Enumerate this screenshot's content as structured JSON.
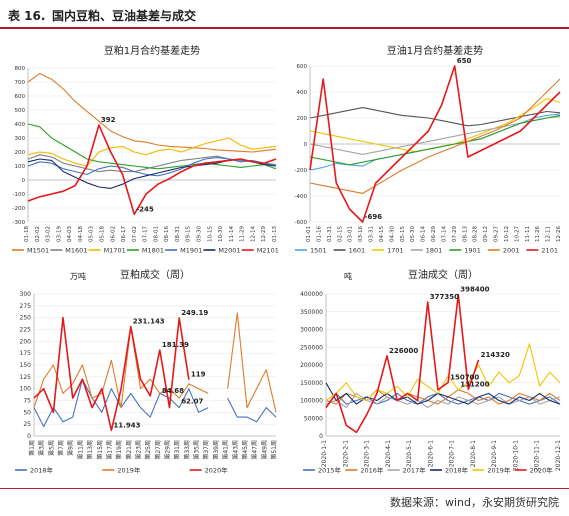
{
  "header": {
    "table_number": "表 16.",
    "title": "国内豆粕、豆油基差与成交"
  },
  "source": "数据来源：wind，永安期货研究院",
  "chart_data": [
    {
      "id": "meal-basis",
      "type": "line",
      "title": "豆粕1月合约基差走势",
      "ylim": [
        -300,
        800
      ],
      "yticks": [
        -300,
        -200,
        -100,
        0,
        100,
        200,
        300,
        400,
        500,
        600,
        700,
        800
      ],
      "x": [
        "01-01",
        "01-19",
        "02-06",
        "02-24",
        "03-12",
        "03-30",
        "04-17",
        "05-05",
        "05-23",
        "06-10",
        "06-28",
        "07-16",
        "08-03",
        "08-21",
        "09-08",
        "09-26",
        "10-14",
        "11-01",
        "11-19",
        "12-07",
        "12-25",
        "01-12"
      ],
      "x_ticks_shown": [
        "01-18",
        "02-02",
        "03-02",
        "03-19",
        "04-03",
        "04-18",
        "05-03",
        "05-18",
        "06-02",
        "06-17",
        "07-02",
        "07-17",
        "08-01",
        "08-16",
        "08-31",
        "09-15",
        "09-30",
        "10-15",
        "10-30",
        "11-14",
        "11-29",
        "12-14",
        "12-29",
        "01-13"
      ],
      "annotations": [
        {
          "text": "392",
          "series": 6,
          "x": "04-17",
          "y": 392
        },
        {
          "text": "-245",
          "series": 6,
          "x": "06-10",
          "y": -245
        }
      ],
      "legend_position": "bottom",
      "series": [
        {
          "name": "M1501",
          "color": "#e07b2a",
          "values": [
            700,
            760,
            720,
            650,
            560,
            490,
            420,
            350,
            310,
            280,
            270,
            250,
            240,
            235,
            230,
            225,
            215,
            210,
            205,
            200,
            210,
            220
          ]
        },
        {
          "name": "M1601",
          "color": "#808080",
          "values": [
            150,
            180,
            165,
            120,
            100,
            80,
            60,
            70,
            60,
            60,
            80,
            100,
            120,
            140,
            150,
            160,
            170,
            150,
            140,
            130,
            120,
            110
          ]
        },
        {
          "name": "M1701",
          "color": "#f5b800",
          "values": [
            180,
            200,
            190,
            150,
            120,
            100,
            200,
            230,
            240,
            200,
            180,
            210,
            220,
            200,
            230,
            260,
            280,
            300,
            250,
            220,
            230,
            240
          ]
        },
        {
          "name": "M1801",
          "color": "#2ca02c",
          "values": [
            400,
            380,
            300,
            250,
            200,
            150,
            130,
            120,
            110,
            100,
            90,
            80,
            90,
            100,
            110,
            120,
            110,
            100,
            90,
            100,
            110,
            80
          ]
        },
        {
          "name": "M1901",
          "color": "#4472c4",
          "values": [
            100,
            130,
            120,
            80,
            60,
            40,
            80,
            100,
            90,
            60,
            40,
            30,
            50,
            80,
            120,
            150,
            160,
            150,
            130,
            140,
            120,
            100
          ]
        },
        {
          "name": "M2001",
          "color": "#1a2a6c",
          "values": [
            130,
            150,
            140,
            60,
            20,
            -20,
            -50,
            -60,
            -30,
            10,
            30,
            50,
            70,
            90,
            100,
            110,
            120,
            140,
            150,
            130,
            110,
            100
          ]
        },
        {
          "name": "M2101",
          "color": "#e31a1c",
          "values": [
            -150,
            -120,
            -100,
            -80,
            -40,
            100,
            392,
            200,
            40,
            -245,
            -100,
            -30,
            10,
            60,
            100,
            120,
            130,
            140,
            150,
            130,
            120,
            150
          ]
        }
      ]
    },
    {
      "id": "oil-basis",
      "type": "line",
      "title": "豆油1月合约基差走势",
      "ylim": [
        -600,
        600
      ],
      "yticks": [
        -600,
        -400,
        -200,
        0,
        200,
        400,
        600
      ],
      "x": [
        "01-01",
        "01-20",
        "02-08",
        "02-27",
        "03-17",
        "04-05",
        "04-24",
        "05-13",
        "06-01",
        "06-20",
        "07-09",
        "07-28",
        "08-16",
        "09-04",
        "09-23",
        "10-12",
        "10-31",
        "11-19",
        "12-08",
        "12-27"
      ],
      "x_ticks_shown": [
        "01-01",
        "01-16",
        "01-31",
        "02-15",
        "03-01",
        "03-16",
        "03-31",
        "04-15",
        "04-30",
        "05-15",
        "05-30",
        "06-14",
        "06-29",
        "07-14",
        "07-29",
        "08-13",
        "08-28",
        "09-12",
        "09-27",
        "10-12",
        "10-27",
        "11-11",
        "11-26",
        "12-11",
        "12-26"
      ],
      "annotations": [
        {
          "text": "650",
          "series": 6,
          "x": "07-28",
          "y": 650
        },
        {
          "text": "-696",
          "series": 6,
          "x": "03-17",
          "y": -696
        }
      ],
      "legend_position": "bottom",
      "series": [
        {
          "name": "1501",
          "color": "#4ba6e8",
          "values": [
            -200,
            -180,
            -150,
            -160,
            -170,
            -120,
            -100,
            -80,
            -60,
            -40,
            -20,
            0,
            20,
            40,
            80,
            120,
            160,
            200,
            220,
            230
          ]
        },
        {
          "name": "1601",
          "color": "#555555",
          "values": [
            200,
            220,
            240,
            260,
            280,
            260,
            240,
            220,
            210,
            200,
            180,
            160,
            140,
            150,
            170,
            190,
            210,
            230,
            250,
            240
          ]
        },
        {
          "name": "1701",
          "color": "#f5c400",
          "values": [
            100,
            80,
            60,
            40,
            20,
            0,
            -20,
            -40,
            -60,
            -40,
            -20,
            0,
            40,
            80,
            120,
            160,
            220,
            280,
            350,
            320
          ]
        },
        {
          "name": "1801",
          "color": "#a5a5a5",
          "values": [
            0,
            -20,
            -40,
            -60,
            -80,
            -60,
            -40,
            -20,
            0,
            20,
            40,
            60,
            80,
            100,
            120,
            140,
            160,
            180,
            200,
            210
          ]
        },
        {
          "name": "1901",
          "color": "#2ca02c",
          "values": [
            -100,
            -120,
            -140,
            -160,
            -140,
            -120,
            -100,
            -80,
            -60,
            -40,
            -20,
            0,
            20,
            40,
            80,
            120,
            160,
            180,
            200,
            220
          ]
        },
        {
          "name": "2001",
          "color": "#e07b2a",
          "values": [
            -300,
            -320,
            -340,
            -360,
            -380,
            -320,
            -260,
            -200,
            -150,
            -100,
            -60,
            -20,
            20,
            60,
            100,
            150,
            200,
            300,
            400,
            500
          ]
        },
        {
          "name": "2101",
          "color": "#e31a1c",
          "values": [
            -200,
            500,
            -300,
            -500,
            -696,
            -300,
            -200,
            -100,
            0,
            100,
            300,
            650,
            -100,
            -50,
            0,
            50,
            100,
            200,
            300,
            400
          ]
        }
      ]
    },
    {
      "id": "meal-volume",
      "type": "line",
      "title": "豆粕成交（周）",
      "ylabel": "万吨",
      "ylim": [
        0,
        300
      ],
      "yticks": [
        0,
        25,
        50,
        75,
        100,
        125,
        150,
        175,
        200,
        225,
        250,
        275,
        300
      ],
      "x": [
        "第1周",
        "第3周",
        "第5周",
        "第7周",
        "第9周",
        "第11周",
        "第13周",
        "第15周",
        "第17周",
        "第19周",
        "第21周",
        "第23周",
        "第25周",
        "第27周",
        "第29周",
        "第31周",
        "第33周",
        "第35周",
        "第37周",
        "第39周",
        "第41周",
        "第43周",
        "第45周",
        "第47周",
        "第49周",
        "第51周"
      ],
      "x_ticks_shown": [
        "第1周",
        "第3周",
        "第5周",
        "第7周",
        "第9周",
        "第11周",
        "第13周",
        "第15周",
        "第17周",
        "第19周",
        "第21周",
        "第23周",
        "第25周",
        "第27周",
        "第29周",
        "第31周",
        "第33周",
        "第35周",
        "第37周",
        "第39周",
        "第41周",
        "第43周",
        "第45周",
        "第47周",
        "第49周",
        "第51周"
      ],
      "annotations": [
        {
          "text": "231.143",
          "x": "第21周",
          "y": 231.143
        },
        {
          "text": "181.39",
          "x": "第27周",
          "y": 181.39
        },
        {
          "text": "249.19",
          "x": "第31周",
          "y": 249.19
        },
        {
          "text": "119",
          "x": "第33周",
          "y": 119
        },
        {
          "text": "11.943",
          "x": "第17周",
          "y": 11.943
        },
        {
          "text": "84.68",
          "x": "第27周",
          "y": 84.68
        },
        {
          "text": "62.07",
          "x": "第31周",
          "y": 62.07
        }
      ],
      "legend_position": "bottom",
      "series": [
        {
          "name": "2018年",
          "color": "#4472c4",
          "values": [
            60,
            20,
            60,
            30,
            40,
            120,
            80,
            50,
            100,
            60,
            90,
            60,
            40,
            90,
            80,
            60,
            100,
            50,
            60,
            null,
            80,
            40,
            40,
            30,
            60,
            40
          ]
        },
        {
          "name": "2019年",
          "color": "#e07b2a",
          "values": [
            60,
            120,
            150,
            90,
            110,
            150,
            80,
            90,
            160,
            60,
            230,
            100,
            120,
            90,
            100,
            80,
            110,
            100,
            90,
            null,
            100,
            260,
            60,
            100,
            140,
            50
          ]
        },
        {
          "name": "2020年",
          "color": "#e31a1c",
          "values": [
            80,
            100,
            50,
            250,
            80,
            120,
            60,
            100,
            11.943,
            100,
            231.143,
            120,
            84.68,
            181.39,
            60,
            249.19,
            119,
            null,
            null,
            null,
            null,
            null,
            null,
            null,
            null,
            null
          ]
        }
      ]
    },
    {
      "id": "oil-volume",
      "type": "line",
      "title": "豆油成交（周）",
      "ylabel": "吨",
      "ylim": [
        0,
        400000
      ],
      "yticks": [
        0,
        50000,
        100000,
        150000,
        200000,
        250000,
        300000,
        350000,
        400000
      ],
      "x": [
        "2020-1-1",
        "2020-1-16",
        "2020-2-1",
        "2020-2-16",
        "2020-3-1",
        "2020-3-16",
        "2020-4-1",
        "2020-4-16",
        "2020-5-1",
        "2020-5-16",
        "2020-6-1",
        "2020-6-16",
        "2020-7-1",
        "2020-7-16",
        "2020-8-1",
        "2020-8-16",
        "2020-9-1",
        "2020-9-16",
        "2020-10-1",
        "2020-10-16",
        "2020-11-1",
        "2020-11-16",
        "2020-12-1",
        "2020-12-16"
      ],
      "x_ticks_shown": [
        "2020-1-1",
        "2020-2-1",
        "2020-3-1",
        "2020-4-1",
        "2020-5-1",
        "2020-6-1",
        "2020-7-1",
        "2020-8-1",
        "2020-9-1",
        "2020-10-1",
        "2020-11-1",
        "2020-12-1"
      ],
      "annotations": [
        {
          "text": "226000",
          "x": "2020-4-1",
          "y": 226000
        },
        {
          "text": "377350",
          "x": "2020-6-1",
          "y": 377350
        },
        {
          "text": "398400",
          "x": "2020-7-16",
          "y": 398400
        },
        {
          "text": "150700",
          "x": "2020-7-1",
          "y": 150700
        },
        {
          "text": "214320",
          "x": "2020-8-16",
          "y": 214320
        },
        {
          "text": "131200",
          "x": "2020-7-16",
          "y": 131200
        }
      ],
      "legend_position": "bottom",
      "series": [
        {
          "name": "2015年",
          "color": "#4472c4",
          "values": [
            80000,
            120000,
            90000,
            100000,
            110000,
            90000,
            100000,
            120000,
            100000,
            90000,
            110000,
            120000,
            100000,
            90000,
            100000,
            110000,
            100000,
            120000,
            110000,
            100000,
            90000,
            100000,
            110000,
            90000
          ]
        },
        {
          "name": "2016年",
          "color": "#e07b2a",
          "values": [
            100000,
            90000,
            120000,
            110000,
            100000,
            130000,
            110000,
            100000,
            120000,
            110000,
            100000,
            90000,
            110000,
            130000,
            120000,
            100000,
            110000,
            90000,
            100000,
            120000,
            110000,
            100000,
            120000,
            100000
          ]
        },
        {
          "name": "2017年",
          "color": "#a5a5a5",
          "values": [
            90000,
            100000,
            80000,
            120000,
            100000,
            90000,
            110000,
            100000,
            90000,
            100000,
            80000,
            100000,
            90000,
            110000,
            100000,
            90000,
            100000,
            110000,
            90000,
            100000,
            110000,
            90000,
            100000,
            110000
          ]
        },
        {
          "name": "2018年",
          "color": "#1a2a6c",
          "values": [
            150000,
            100000,
            120000,
            90000,
            110000,
            100000,
            120000,
            100000,
            110000,
            90000,
            100000,
            120000,
            110000,
            100000,
            90000,
            110000,
            120000,
            100000,
            90000,
            110000,
            100000,
            120000,
            100000,
            90000
          ]
        },
        {
          "name": "2019年",
          "color": "#f5c400",
          "values": [
            100000,
            120000,
            150000,
            110000,
            100000,
            130000,
            120000,
            140000,
            110000,
            160000,
            140000,
            120000,
            170000,
            130000,
            150000,
            200000,
            140000,
            180000,
            150000,
            170000,
            260000,
            140000,
            180000,
            150000
          ]
        },
        {
          "name": "2020年",
          "color": "#e31a1c",
          "values": [
            80000,
            120000,
            30000,
            10000,
            60000,
            120000,
            226000,
            100000,
            120000,
            100000,
            377350,
            130000,
            150700,
            398400,
            131200,
            214320,
            null,
            null,
            null,
            null,
            null,
            null,
            null,
            null
          ]
        }
      ]
    }
  ]
}
